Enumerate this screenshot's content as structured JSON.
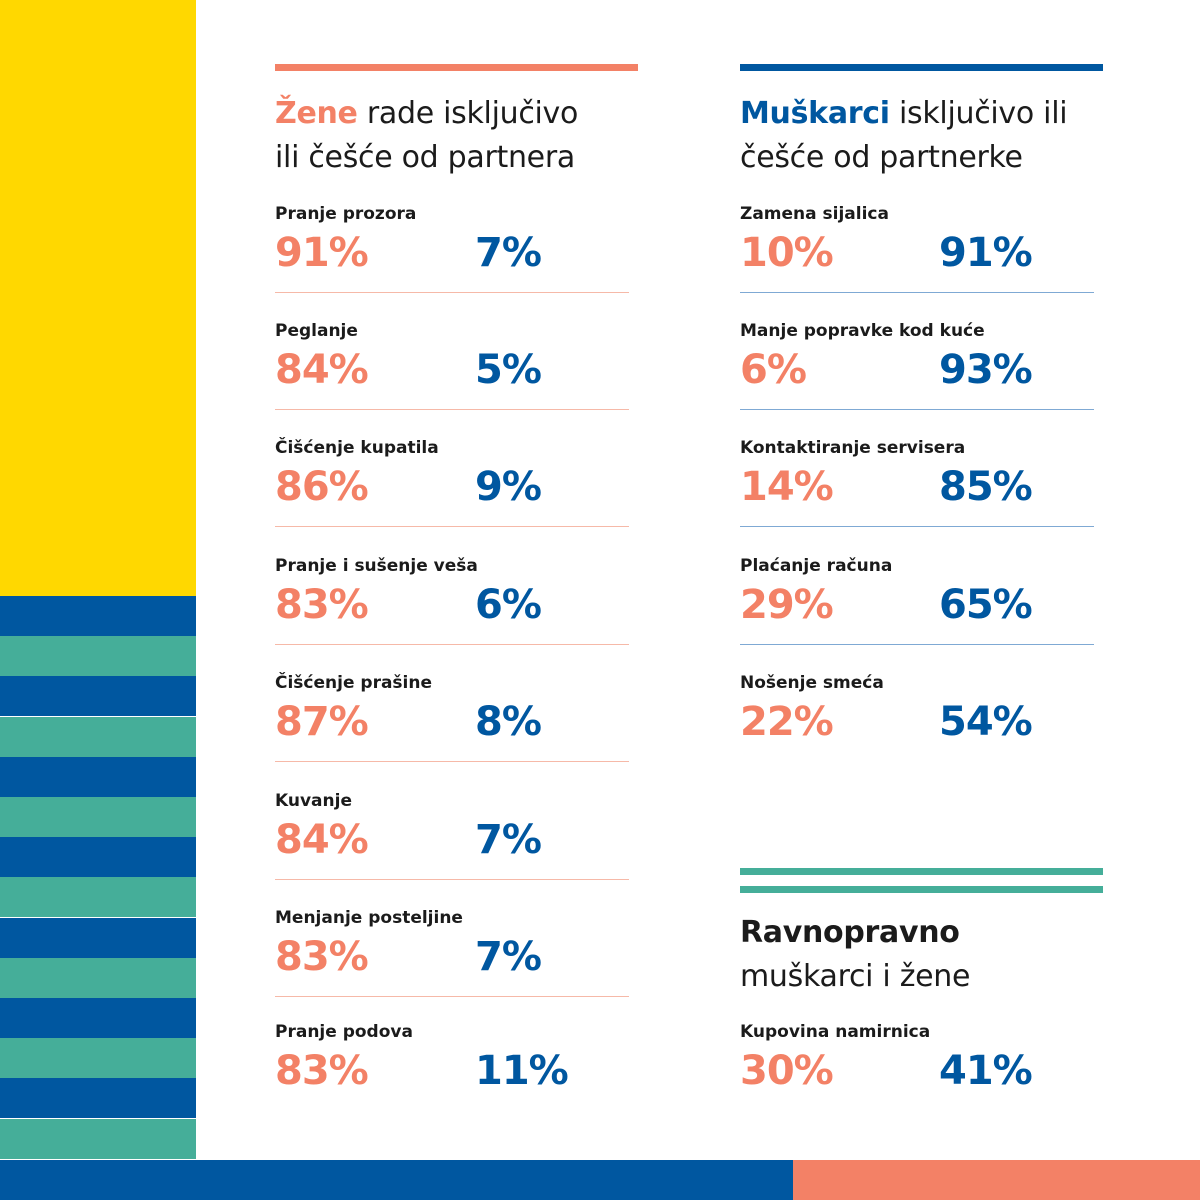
{
  "colors": {
    "coral": "#F38166",
    "blue": "#0057A0",
    "teal": "#45AE99",
    "yellow": "#FFD800",
    "text": "#1b1b1b"
  },
  "women_section": {
    "title_highlight": "Žene",
    "title_rest_line1": " rade isključivo",
    "title_line2": "ili češće od partnera",
    "rows": [
      {
        "label": "Pranje prozora",
        "women": "91%",
        "men": "7%"
      },
      {
        "label": "Peglanje",
        "women": "84%",
        "men": "5%"
      },
      {
        "label": "Čišćenje kupatila",
        "women": "86%",
        "men": "9%"
      },
      {
        "label": "Pranje i sušenje veša",
        "women": "83%",
        "men": "6%"
      },
      {
        "label": "Čišćenje prašine",
        "women": "87%",
        "men": "8%"
      },
      {
        "label": "Kuvanje",
        "women": "84%",
        "men": "7%"
      },
      {
        "label": "Menjanje posteljine",
        "women": "83%",
        "men": "7%"
      },
      {
        "label": "Pranje podova",
        "women": "83%",
        "men": "11%"
      }
    ]
  },
  "men_section": {
    "title_highlight": "Muškarci",
    "title_rest_line1": " isključivo ili",
    "title_line2": "češće od partnerke",
    "rows": [
      {
        "label": "Zamena sijalica",
        "women": "10%",
        "men": "91%"
      },
      {
        "label": "Manje popravke kod kuće",
        "women": "6%",
        "men": "93%"
      },
      {
        "label": "Kontaktiranje servisera",
        "women": "14%",
        "men": "85%"
      },
      {
        "label": "Plaćanje računa",
        "women": "29%",
        "men": "65%"
      },
      {
        "label": "Nošenje smeća",
        "women": "22%",
        "men": "54%"
      }
    ]
  },
  "equal_section": {
    "title_bold": "Ravnopravno",
    "title_line2": "muškarci i žene",
    "rows": [
      {
        "label": "Kupovina namirnica",
        "women": "30%",
        "men": "41%"
      }
    ]
  }
}
